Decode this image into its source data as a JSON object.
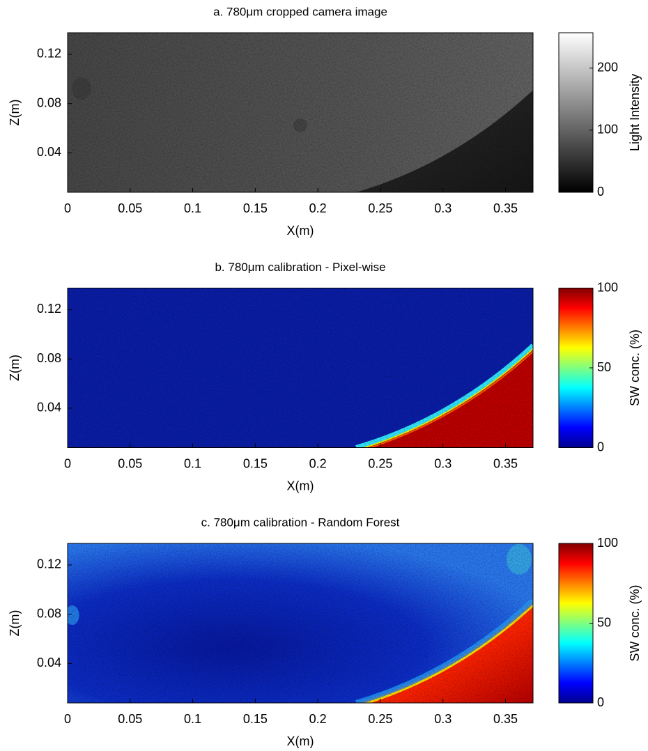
{
  "chart_data": [
    {
      "type": "heatmap",
      "title": "a. 780μm cropped camera image",
      "xlabel": "X(m)",
      "ylabel": "Z(m)",
      "xlim": [
        0,
        0.372
      ],
      "ylim": [
        0.008,
        0.1375
      ],
      "xticks": [
        0,
        0.05,
        0.1,
        0.15,
        0.2,
        0.25,
        0.3,
        0.35
      ],
      "yticks": [
        0.04,
        0.08,
        0.12
      ],
      "colorbar": {
        "label": "Light Intensity",
        "lim": [
          0,
          257
        ],
        "ticks": [
          0,
          100,
          200
        ],
        "colormap": "gray"
      }
    },
    {
      "type": "heatmap",
      "title": "b. 780μm calibration - Pixel-wise",
      "xlabel": "X(m)",
      "ylabel": "Z(m)",
      "xlim": [
        0,
        0.372
      ],
      "ylim": [
        0.008,
        0.1375
      ],
      "xticks": [
        0,
        0.05,
        0.1,
        0.15,
        0.2,
        0.25,
        0.3,
        0.35
      ],
      "yticks": [
        0.04,
        0.08,
        0.12
      ],
      "colorbar": {
        "label": "SW conc.  (%)",
        "lim": [
          0,
          100
        ],
        "ticks": [
          0,
          50,
          100
        ],
        "colormap": "jet"
      }
    },
    {
      "type": "heatmap",
      "title": "c. 780μm calibration - Random Forest",
      "xlabel": "X(m)",
      "ylabel": "Z(m)",
      "xlim": [
        0,
        0.372
      ],
      "ylim": [
        0.008,
        0.1375
      ],
      "xticks": [
        0,
        0.05,
        0.1,
        0.15,
        0.2,
        0.25,
        0.3,
        0.35
      ],
      "yticks": [
        0.04,
        0.08,
        0.12
      ],
      "colorbar": {
        "label": "SW conc.  (%)",
        "lim": [
          0,
          100
        ],
        "ticks": [
          0,
          50,
          100
        ],
        "colormap": "jet"
      }
    }
  ]
}
